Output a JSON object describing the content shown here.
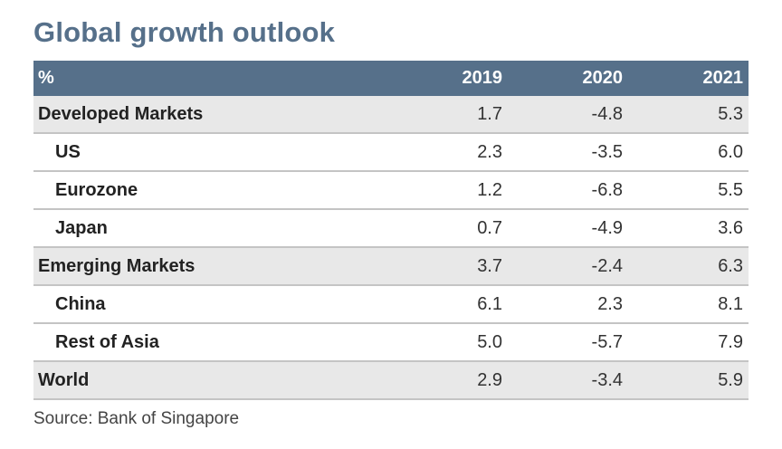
{
  "title": "Global growth outlook",
  "source": "Source: Bank of Singapore",
  "colors": {
    "header_bg": "#56708a",
    "title": "#56708a",
    "shaded_row": "#e8e8e8",
    "divider": "#c4c4c4"
  },
  "chart_data": {
    "type": "table",
    "title": "Global growth outlook",
    "unit_label": "%",
    "columns": [
      "2019",
      "2020",
      "2021"
    ],
    "rows": [
      {
        "label": "Developed Markets",
        "level": 0,
        "values": [
          "1.7",
          "-4.8",
          "5.3"
        ]
      },
      {
        "label": "US",
        "level": 1,
        "values": [
          "2.3",
          "-3.5",
          "6.0"
        ]
      },
      {
        "label": "Eurozone",
        "level": 1,
        "values": [
          "1.2",
          "-6.8",
          "5.5"
        ]
      },
      {
        "label": "Japan",
        "level": 1,
        "values": [
          "0.7",
          "-4.9",
          "3.6"
        ]
      },
      {
        "label": "Emerging Markets",
        "level": 0,
        "values": [
          "3.7",
          "-2.4",
          "6.3"
        ]
      },
      {
        "label": "China",
        "level": 1,
        "values": [
          "6.1",
          "2.3",
          "8.1"
        ]
      },
      {
        "label": "Rest of Asia",
        "level": 1,
        "values": [
          "5.0",
          "-5.7",
          "7.9"
        ]
      },
      {
        "label": "World",
        "level": 0,
        "values": [
          "2.9",
          "-3.4",
          "5.9"
        ]
      }
    ]
  }
}
